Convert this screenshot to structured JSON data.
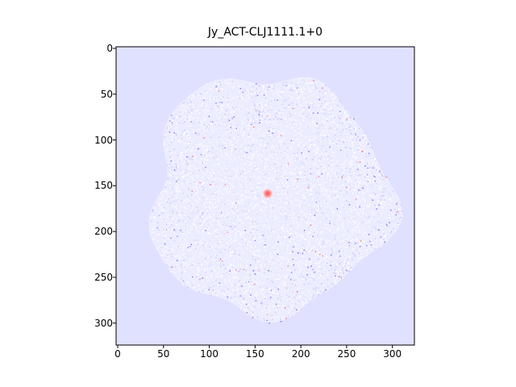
{
  "figure": {
    "title": "Jy_ACT-CLJ1111.1+0",
    "x_ticks": [
      "0",
      "50",
      "100",
      "150",
      "200",
      "250",
      "300"
    ],
    "y_ticks": [
      "0",
      "50",
      "100",
      "150",
      "200",
      "250",
      "300"
    ]
  },
  "image_content": {
    "description_colors": {
      "background": "#e0e0ff",
      "noise_light": "#ffffff",
      "noise_blue": "#7070ff",
      "noise_red": "#ff7070",
      "center_spot": "#ff6060"
    },
    "extent": [
      0,
      324,
      324,
      0
    ],
    "center_source": {
      "x": 165,
      "y": 160
    }
  }
}
